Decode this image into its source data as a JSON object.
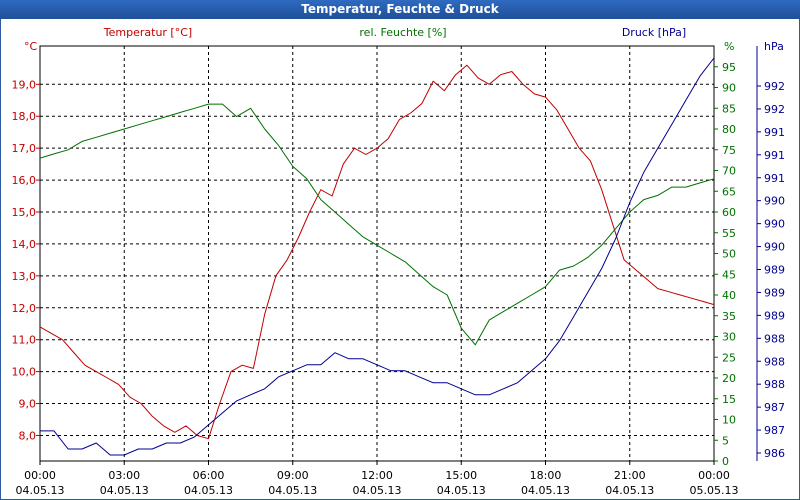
{
  "title": "Temperatur, Feuchte & Druck",
  "chart_data": {
    "type": "line",
    "title": "Temperatur, Feuchte & Druck",
    "x_ticks": [
      {
        "time": "00:00",
        "date": "04.05.13"
      },
      {
        "time": "03:00",
        "date": "04.05.13"
      },
      {
        "time": "06:00",
        "date": "04.05.13"
      },
      {
        "time": "09:00",
        "date": "04.05.13"
      },
      {
        "time": "12:00",
        "date": "04.05.13"
      },
      {
        "time": "15:00",
        "date": "04.05.13"
      },
      {
        "time": "18:00",
        "date": "04.05.13"
      },
      {
        "time": "21:00",
        "date": "04.05.13"
      },
      {
        "time": "00:00",
        "date": "05.05.13"
      }
    ],
    "xlim": [
      0,
      24
    ],
    "axes": {
      "temp": {
        "label": "Temperatur [°C]",
        "unit": "°C",
        "ylim": [
          7.2,
          20.2
        ],
        "ticks": [
          "8,0",
          "9,0",
          "10,0",
          "11,0",
          "12,0",
          "13,0",
          "14,0",
          "15,0",
          "16,0",
          "17,0",
          "18,0",
          "19,0"
        ],
        "color": "#c00000"
      },
      "hum": {
        "label": "rel. Feuchte [%]",
        "unit": "%",
        "ylim": [
          0,
          100
        ],
        "ticks": [
          "0",
          "5",
          "10",
          "15",
          "20",
          "25",
          "30",
          "35",
          "40",
          "45",
          "50",
          "55",
          "60",
          "65",
          "70",
          "75",
          "80",
          "85",
          "90",
          "95"
        ],
        "color": "#007000"
      },
      "press": {
        "label": "Druck [hPa]",
        "unit": "hPa",
        "ticks": [
          "986",
          "987",
          "987",
          "988",
          "988",
          "988",
          "989",
          "989",
          "989",
          "990",
          "990",
          "990",
          "991",
          "991",
          "991",
          "992",
          "992"
        ],
        "color": "#000090"
      }
    },
    "series": [
      {
        "name": "Temperatur",
        "axis": "temp",
        "color": "#c00000",
        "x": [
          0,
          0.4,
          0.8,
          1.2,
          1.6,
          2.0,
          2.4,
          2.8,
          3.2,
          3.6,
          4.0,
          4.4,
          4.8,
          5.2,
          5.6,
          6.0,
          6.4,
          6.8,
          7.2,
          7.6,
          8.0,
          8.4,
          8.8,
          9.2,
          9.6,
          10.0,
          10.4,
          10.8,
          11.2,
          11.6,
          12.0,
          12.4,
          12.8,
          13.2,
          13.6,
          14.0,
          14.4,
          14.8,
          15.2,
          15.6,
          16.0,
          16.4,
          16.8,
          17.2,
          17.6,
          18.0,
          18.4,
          18.8,
          19.2,
          19.6,
          20.0,
          20.4,
          20.8,
          21.2,
          21.6,
          22.0,
          22.4,
          22.8,
          23.2,
          23.6,
          24.0
        ],
        "values": [
          11.4,
          11.2,
          11.0,
          10.6,
          10.2,
          10.0,
          9.8,
          9.6,
          9.2,
          9.0,
          8.6,
          8.3,
          8.1,
          8.3,
          8.0,
          7.9,
          9.0,
          10.0,
          10.2,
          10.1,
          11.8,
          13.0,
          13.5,
          14.2,
          15.0,
          15.7,
          15.5,
          16.5,
          17.0,
          16.8,
          17.0,
          17.3,
          17.9,
          18.1,
          18.4,
          19.1,
          18.8,
          19.3,
          19.6,
          19.2,
          19.0,
          19.3,
          19.4,
          19.0,
          18.7,
          18.6,
          18.2,
          17.6,
          17.0,
          16.6,
          15.7,
          14.6,
          13.5,
          13.2,
          12.9,
          12.6,
          12.5,
          12.4,
          12.3,
          12.2,
          12.1
        ]
      },
      {
        "name": "rel. Feuchte",
        "axis": "hum",
        "color": "#007000",
        "x": [
          0,
          0.5,
          1.0,
          1.5,
          2.0,
          2.5,
          3.0,
          3.5,
          4.0,
          4.5,
          5.0,
          5.5,
          6.0,
          6.5,
          7.0,
          7.5,
          8.0,
          8.5,
          9.0,
          9.5,
          10.0,
          10.5,
          11.0,
          11.5,
          12.0,
          12.5,
          13.0,
          13.5,
          14.0,
          14.5,
          15.0,
          15.5,
          16.0,
          16.5,
          17.0,
          17.5,
          18.0,
          18.5,
          19.0,
          19.5,
          20.0,
          20.5,
          21.0,
          21.5,
          22.0,
          22.5,
          23.0,
          23.5,
          24.0
        ],
        "values": [
          73,
          74,
          75,
          77,
          78,
          79,
          80,
          81,
          82,
          83,
          84,
          85,
          86,
          86,
          83,
          85,
          80,
          76,
          71,
          68,
          63,
          60,
          57,
          54,
          52,
          50,
          48,
          45,
          42,
          40,
          32,
          28,
          34,
          36,
          38,
          40,
          42,
          46,
          47,
          49,
          52,
          56,
          60,
          63,
          64,
          66,
          66,
          67,
          68
        ]
      },
      {
        "name": "Druck",
        "axis": "press",
        "color": "#000090",
        "x": [
          0,
          0.5,
          1.0,
          1.5,
          2.0,
          2.5,
          3.0,
          3.5,
          4.0,
          4.5,
          5.0,
          5.5,
          6.0,
          6.5,
          7.0,
          7.5,
          8.0,
          8.5,
          9.0,
          9.5,
          10.0,
          10.5,
          11.0,
          11.5,
          12.0,
          12.5,
          13.0,
          13.5,
          14.0,
          14.5,
          15.0,
          15.5,
          16.0,
          16.5,
          17.0,
          17.5,
          18.0,
          18.5,
          19.0,
          19.5,
          20.0,
          20.5,
          21.0,
          21.5,
          22.0,
          22.5,
          23.0,
          23.5,
          24.0
        ],
        "values": [
          986.5,
          986.5,
          986.2,
          986.2,
          986.3,
          986.1,
          986.1,
          986.2,
          986.2,
          986.3,
          986.3,
          986.4,
          986.6,
          986.8,
          987.0,
          987.1,
          987.2,
          987.4,
          987.5,
          987.6,
          987.6,
          987.8,
          987.7,
          987.7,
          987.6,
          987.5,
          987.5,
          987.4,
          987.3,
          987.3,
          987.2,
          987.1,
          987.1,
          987.2,
          987.3,
          987.5,
          987.7,
          988.0,
          988.4,
          988.8,
          989.2,
          989.7,
          990.3,
          990.8,
          991.2,
          991.6,
          992.0,
          992.4,
          992.7
        ]
      }
    ]
  }
}
